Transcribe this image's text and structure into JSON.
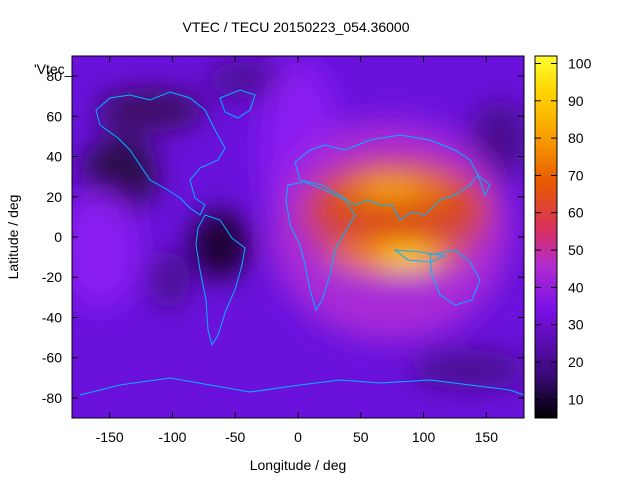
{
  "chart_data": {
    "type": "heatmap",
    "title": "VTEC / TECU 20150223_054.36000",
    "xlabel": "Longitude / deg",
    "ylabel": "Latitude / deg",
    "xlim": [
      -180,
      180
    ],
    "ylim": [
      -90,
      90
    ],
    "x_ticks": [
      "-150",
      "-100",
      "-50",
      "0",
      "50",
      "100",
      "150"
    ],
    "y_ticks": [
      "-80",
      "-60",
      "-40",
      "-20",
      "0",
      "20",
      "40",
      "60",
      "80"
    ],
    "legend_entry": "'Vtec_",
    "colorbar": {
      "range": [
        5,
        102
      ],
      "ticks": [
        "10",
        "20",
        "30",
        "40",
        "50",
        "60",
        "70",
        "80",
        "90",
        "100"
      ],
      "palette": [
        "#000000",
        "#3a0a78",
        "#7a10e8",
        "#b02cd0",
        "#d83060",
        "#e85a00",
        "#f9a000",
        "#ffd400",
        "#ffff30"
      ]
    },
    "grid": false,
    "overlay": "coastlines",
    "coastline_color": "#00b4ff",
    "features": [
      {
        "lon": 90,
        "lat": -10,
        "vtec": 100,
        "note": "peak"
      },
      {
        "lon": 65,
        "lat": 22,
        "vtec": 80
      },
      {
        "lon": 110,
        "lat": 12,
        "vtec": 65
      },
      {
        "lon": 30,
        "lat": 5,
        "vtec": 55
      },
      {
        "lon": 0,
        "lat": 0,
        "vtec": 38
      },
      {
        "lon": -120,
        "lat": 40,
        "vtec": 12
      },
      {
        "lon": -150,
        "lat": 75,
        "vtec": 15
      },
      {
        "lon": -60,
        "lat": -20,
        "vtec": 10
      },
      {
        "lon": -160,
        "lat": -40,
        "vtec": 25
      },
      {
        "lon": 140,
        "lat": -60,
        "vtec": 22
      }
    ]
  }
}
